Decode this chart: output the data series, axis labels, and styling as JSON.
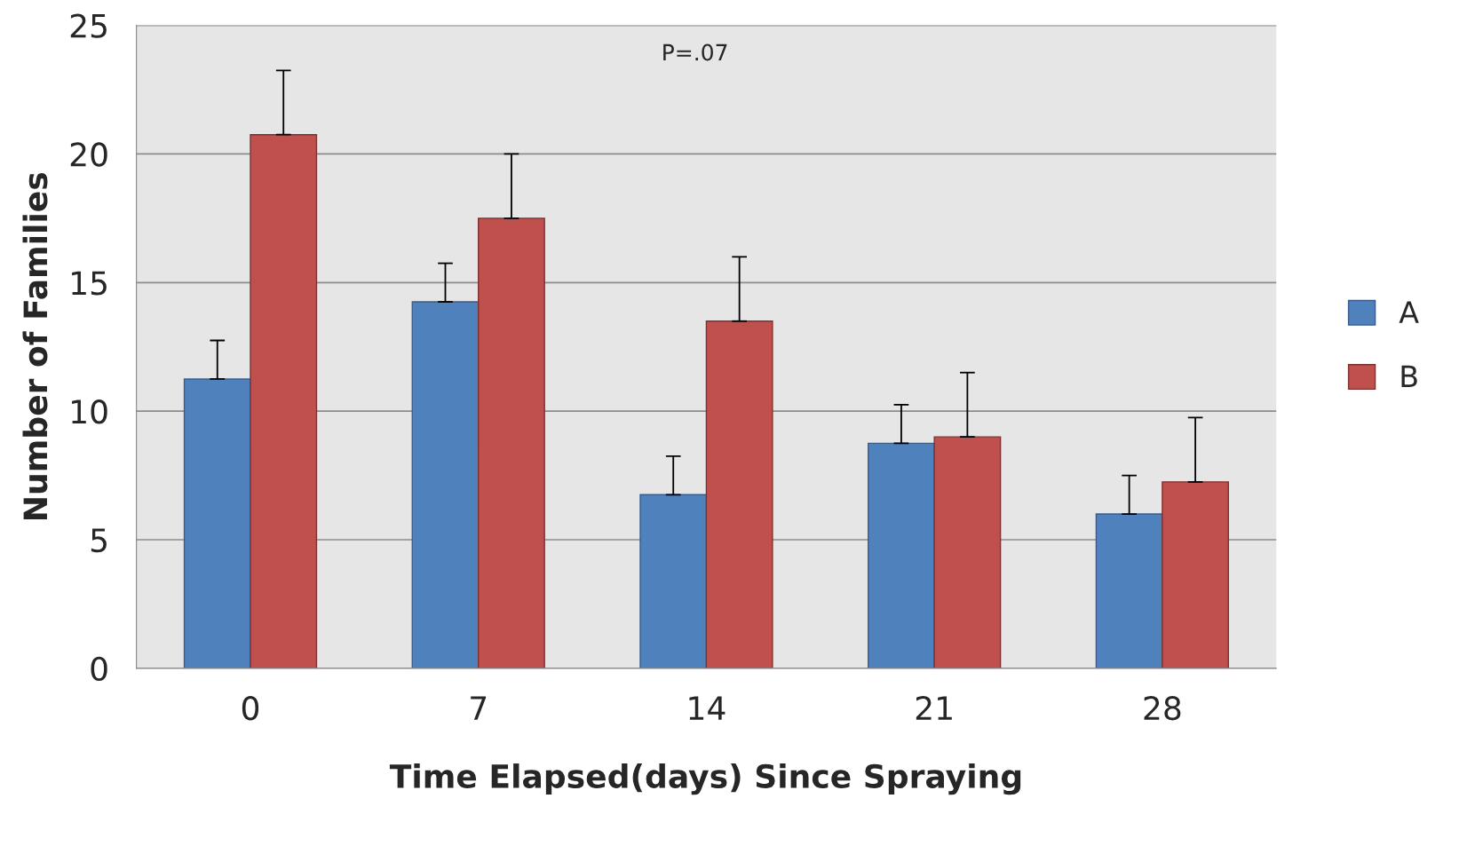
{
  "chart_data": {
    "type": "bar",
    "xlabel": "Time Elapsed(days) Since Spraying",
    "ylabel": "Number of Families",
    "categories": [
      "0",
      "7",
      "14",
      "21",
      "28"
    ],
    "series": [
      {
        "name": "A",
        "color": "#4f81bd",
        "values": [
          11.25,
          14.25,
          6.75,
          8.75,
          6.0
        ],
        "errors": [
          [
            11.25,
            12.75
          ],
          [
            14.25,
            15.75
          ],
          [
            6.75,
            8.25
          ],
          [
            8.75,
            10.25
          ],
          [
            6.0,
            7.5
          ]
        ]
      },
      {
        "name": "B",
        "color": "#c0504d",
        "values": [
          20.75,
          17.5,
          13.5,
          9.0,
          7.25
        ],
        "errors": [
          [
            20.75,
            23.25
          ],
          [
            17.5,
            20.0
          ],
          [
            13.5,
            16.0
          ],
          [
            9.0,
            11.5
          ],
          [
            7.25,
            9.75
          ]
        ]
      }
    ],
    "ylim": [
      0,
      25
    ],
    "yticks": [
      0,
      5,
      10,
      15,
      20,
      25
    ],
    "grid": "y",
    "legend": "right",
    "annotations": [
      "P=.07"
    ]
  }
}
